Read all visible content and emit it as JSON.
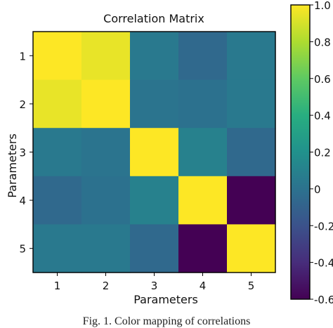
{
  "chart_data": {
    "type": "heatmap",
    "title": "Correlation Matrix",
    "xlabel": "Parameters",
    "ylabel": "Parameters",
    "x_categories": [
      "1",
      "2",
      "3",
      "4",
      "5"
    ],
    "y_categories": [
      "1",
      "2",
      "3",
      "4",
      "5"
    ],
    "values": [
      [
        1.0,
        0.95,
        0.05,
        -0.05,
        0.05
      ],
      [
        0.95,
        1.0,
        0.02,
        0.0,
        0.05
      ],
      [
        0.05,
        0.02,
        1.0,
        0.1,
        -0.05
      ],
      [
        -0.05,
        0.0,
        0.1,
        1.0,
        -0.6
      ],
      [
        0.05,
        0.05,
        -0.05,
        -0.6,
        1.0
      ]
    ],
    "colorbar": {
      "min": -0.6,
      "max": 1.0,
      "colormap": "viridis",
      "ticks": [
        1.0,
        0.8,
        0.6,
        0.4,
        0.2,
        0,
        -0.2,
        -0.4,
        -0.6
      ],
      "tick_labels": [
        "1.0",
        "0.8",
        "0.6",
        "0.4",
        "0.2",
        "0",
        "-0.2",
        "-0.4",
        "-0.6"
      ]
    }
  },
  "caption": "Fig. 1. Color mapping of correlations"
}
